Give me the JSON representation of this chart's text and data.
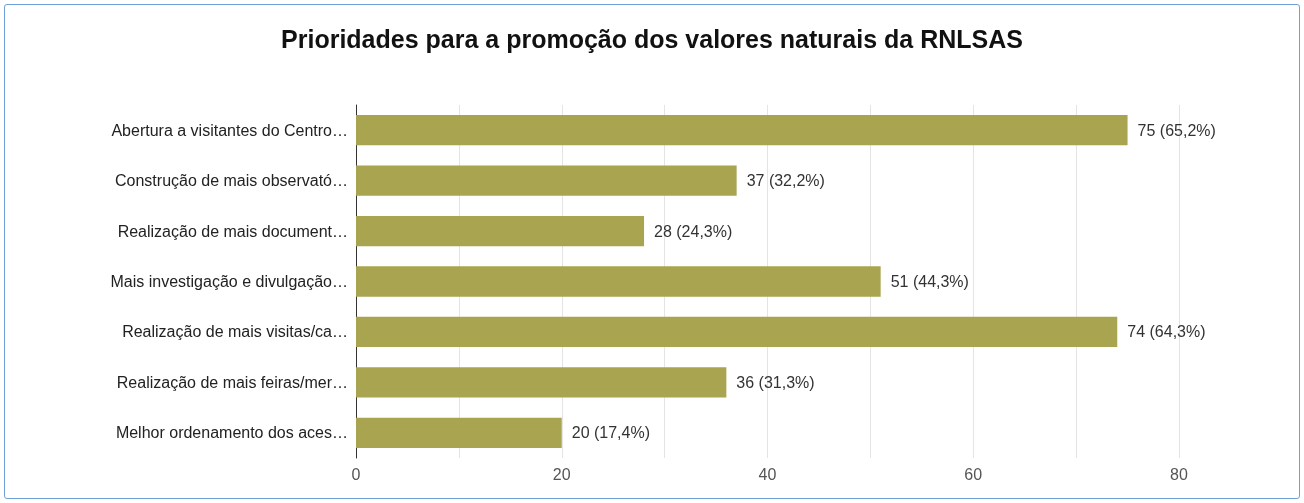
{
  "chart_data": {
    "type": "bar",
    "orientation": "horizontal",
    "title": "Prioridades para a promoção dos valores naturais da RNLSAS",
    "categories": [
      "Abertura a visitantes do Centro…",
      "Construção de mais observató…",
      "Realização de mais document…",
      "Mais investigação e divulgação…",
      "Realização de mais visitas/ca…",
      "Realização de mais feiras/mer…",
      "Melhor ordenamento dos aces…"
    ],
    "values": [
      75,
      37,
      28,
      51,
      74,
      36,
      20
    ],
    "value_labels": [
      "75 (65,2%)",
      "37 (32,2%)",
      "28 (24,3%)",
      "51 (44,3%)",
      "74 (64,3%)",
      "36 (31,3%)",
      "20 (17,4%)"
    ],
    "color": "#a8a44f",
    "xlim": [
      0,
      80
    ],
    "xticks": [
      0,
      {
        "value": 10,
        "label": null
      },
      20,
      {
        "value": 30,
        "label": null
      },
      40,
      {
        "value": 50,
        "label": null
      },
      60,
      {
        "value": 70,
        "label": null
      },
      80
    ],
    "grid": true
  }
}
